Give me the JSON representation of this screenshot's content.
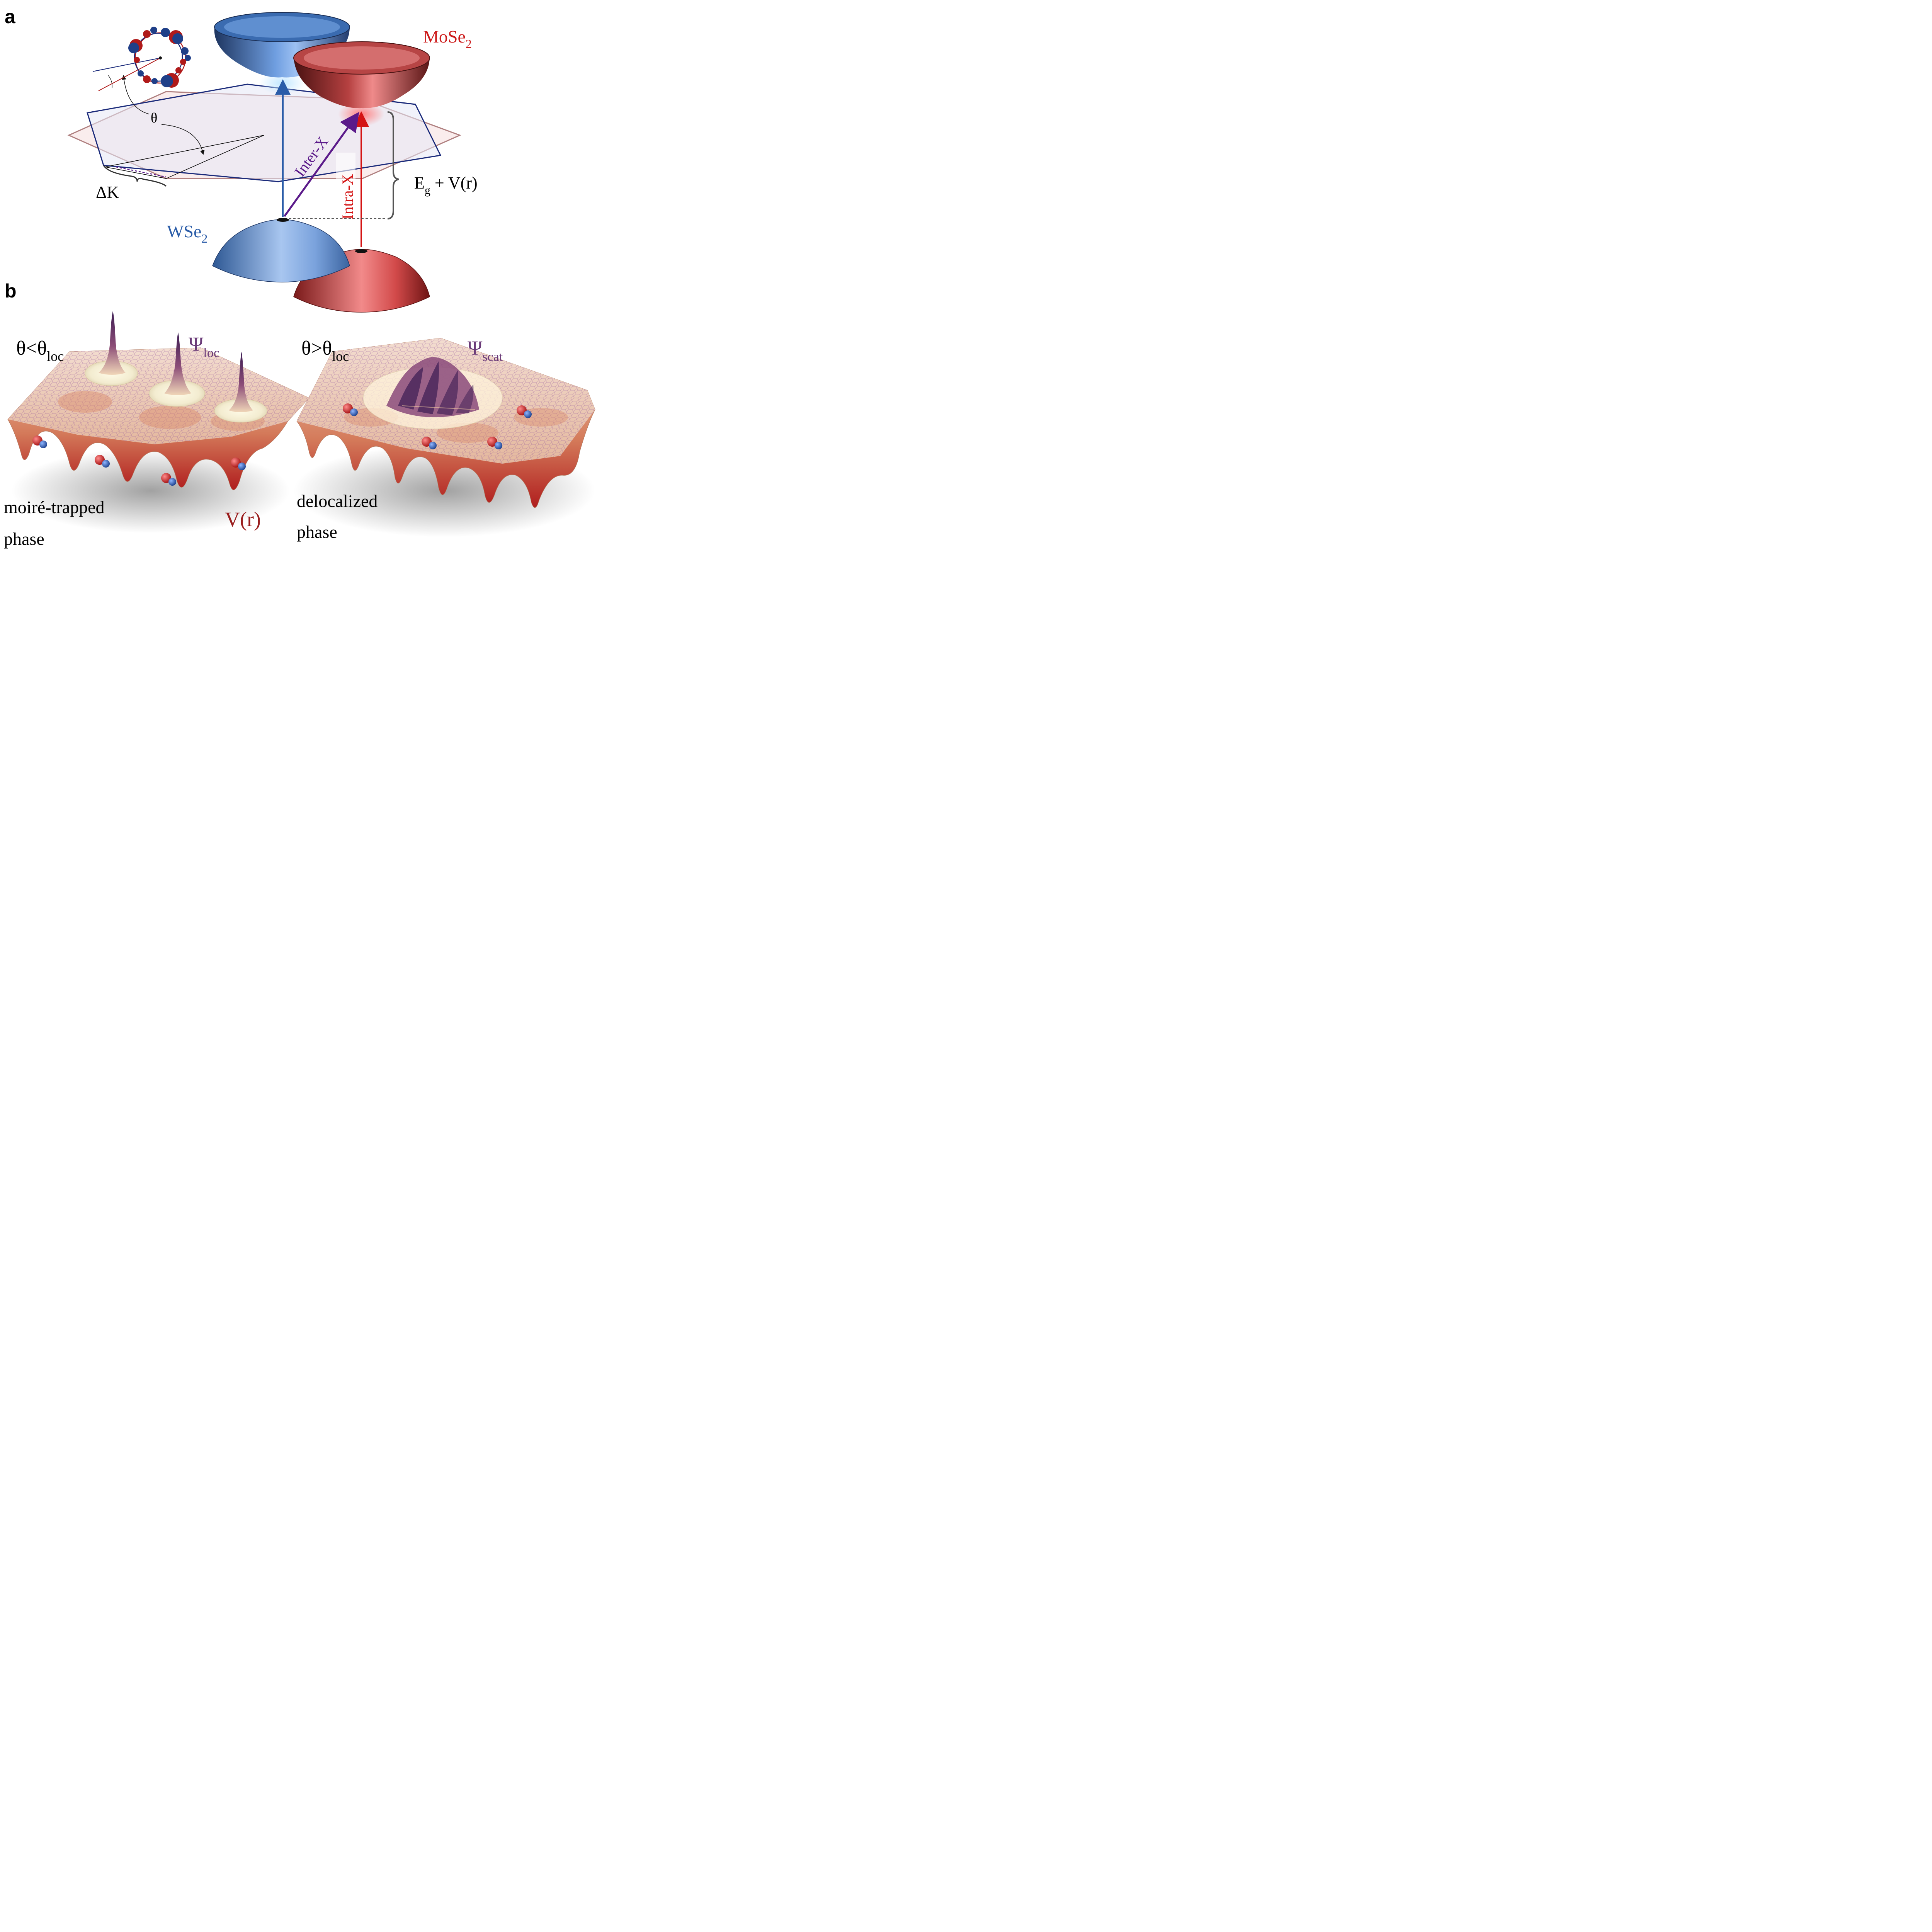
{
  "panel_a": {
    "label": "a",
    "material_top": "MoSe",
    "material_top_sub": "2",
    "material_bottom": "WSe",
    "material_bottom_sub": "2",
    "twist_angle": "θ",
    "momentum_offset": "ΔK",
    "inter_exciton": "Inter-X",
    "intra_exciton": "Intra-X",
    "gap_label": "E",
    "gap_sub": "g",
    "gap_rest": " + V(r)"
  },
  "panel_b": {
    "label": "b",
    "left": {
      "condition": "θ<θ",
      "condition_sub": "loc",
      "wavefunction": "Ψ",
      "wavefunction_sub": "loc",
      "phase_line1": "moiré-trapped",
      "phase_line2": "phase",
      "potential": "V(r)"
    },
    "right": {
      "condition": "θ>θ",
      "condition_sub": "loc",
      "wavefunction": "Ψ",
      "wavefunction_sub": "scat",
      "phase_line1": "delocalized",
      "phase_line2": "phase"
    }
  },
  "colors": {
    "wse2_blue": "#2a5ca8",
    "mose2_red": "#cc1a1a",
    "inter_purple": "#5b1a8a",
    "psi_purple": "#6a3a78",
    "potential_red": "#9a1e1e"
  }
}
